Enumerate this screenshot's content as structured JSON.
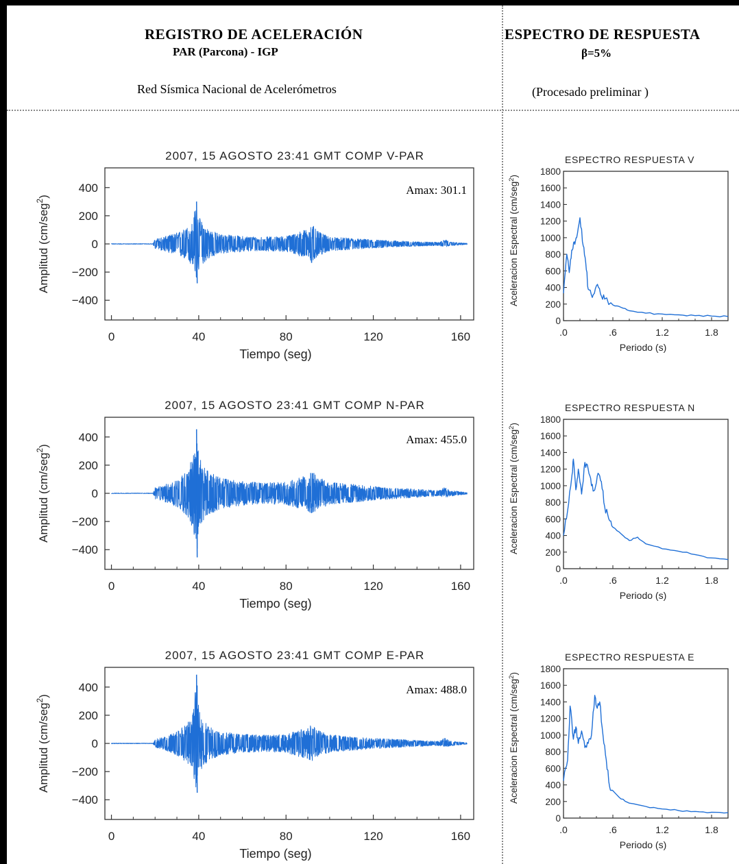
{
  "header": {
    "left_title": "REGISTRO DE ACELERACIÓN",
    "left_station": "PAR (Parcona) - IGP",
    "left_network": "Red Sísmica Nacional de Acelerómetros",
    "right_title": "ESPECTRO DE RESPUESTA",
    "right_damping": "β=5%",
    "right_note": "(Procesado preliminar )"
  },
  "colors": {
    "trace": "#1f6fd6",
    "axis": "#333333",
    "background": "#ffffff",
    "border": "#000000"
  },
  "chart_data": [
    {
      "type": "line",
      "title": "2007, 15 AGOSTO 23:41 GMT COMP V-PAR",
      "annotation": "Amax: 301.1",
      "amax": 301.1,
      "xlabel": "Tiempo (seg)",
      "ylabel": "Amplitud (cm/seg²)",
      "xlim": [
        -3,
        166
      ],
      "ylim": [
        -540,
        540
      ],
      "xticks": [
        0,
        40,
        80,
        120,
        160
      ],
      "yticks": [
        400,
        200,
        0,
        -200,
        -400
      ],
      "ytick_labels": [
        "400",
        "200",
        "0",
        "−200",
        "−400"
      ],
      "envelope": {
        "t": [
          0,
          19,
          20,
          25,
          30,
          34,
          37,
          38,
          39,
          40,
          42,
          45,
          50,
          60,
          70,
          80,
          86,
          90,
          92,
          94,
          97,
          100,
          110,
          120,
          130,
          140,
          150,
          153,
          155,
          160,
          163
        ],
        "pos": [
          2,
          2,
          35,
          55,
          80,
          110,
          150,
          230,
          301,
          200,
          140,
          100,
          70,
          55,
          50,
          55,
          85,
          110,
          140,
          95,
          70,
          50,
          40,
          30,
          22,
          16,
          12,
          30,
          14,
          8,
          5
        ],
        "neg": [
          2,
          2,
          35,
          55,
          80,
          110,
          160,
          200,
          280,
          190,
          140,
          100,
          70,
          55,
          50,
          55,
          85,
          110,
          150,
          95,
          70,
          50,
          40,
          30,
          22,
          16,
          12,
          22,
          14,
          8,
          5
        ]
      }
    },
    {
      "type": "line",
      "title": "ESPECTRO RESPUESTA V",
      "xlabel": "Periodo (s)",
      "ylabel": "Aceleracion Espectral (cm/seg²)",
      "xlim": [
        0,
        2.0
      ],
      "ylim": [
        0,
        1800
      ],
      "xticks": [
        0,
        0.6,
        1.2,
        1.8
      ],
      "xtick_labels": [
        ".0",
        ".6",
        "1.2",
        "1.8"
      ],
      "yticks": [
        0,
        200,
        400,
        600,
        800,
        1000,
        1200,
        1400,
        1600,
        1800
      ],
      "x": [
        0,
        0.04,
        0.07,
        0.1,
        0.13,
        0.16,
        0.2,
        0.24,
        0.27,
        0.3,
        0.35,
        0.4,
        0.45,
        0.5,
        0.6,
        0.7,
        0.8,
        1.0,
        1.2,
        1.4,
        1.6,
        1.8,
        2.0
      ],
      "y": [
        330,
        800,
        580,
        850,
        950,
        1000,
        1240,
        900,
        700,
        380,
        280,
        420,
        320,
        260,
        190,
        160,
        120,
        90,
        80,
        70,
        60,
        55,
        50
      ]
    },
    {
      "type": "line",
      "title": "2007, 15 AGOSTO 23:41 GMT COMP N-PAR",
      "annotation": "Amax: 455.0",
      "amax": 455.0,
      "xlabel": "Tiempo (seg)",
      "ylabel": "Amplitud (cm/seg²)",
      "xlim": [
        -3,
        166
      ],
      "ylim": [
        -540,
        540
      ],
      "xticks": [
        0,
        40,
        80,
        120,
        160
      ],
      "yticks": [
        400,
        200,
        0,
        -200,
        -400
      ],
      "ytick_labels": [
        "400",
        "200",
        "0",
        "−200",
        "−400"
      ],
      "envelope": {
        "t": [
          0,
          19,
          20,
          25,
          30,
          34,
          37,
          38,
          39,
          40,
          42,
          45,
          50,
          60,
          70,
          80,
          86,
          90,
          92,
          94,
          97,
          100,
          110,
          120,
          130,
          140,
          150,
          153,
          155,
          160,
          163
        ],
        "pos": [
          2,
          2,
          40,
          65,
          100,
          150,
          250,
          300,
          390,
          280,
          200,
          150,
          110,
          85,
          75,
          80,
          110,
          130,
          160,
          120,
          100,
          80,
          65,
          50,
          40,
          30,
          20,
          45,
          22,
          12,
          6
        ],
        "neg": [
          2,
          2,
          40,
          65,
          100,
          150,
          250,
          330,
          455,
          300,
          210,
          150,
          110,
          85,
          75,
          80,
          110,
          130,
          145,
          120,
          100,
          80,
          65,
          50,
          40,
          30,
          20,
          30,
          22,
          12,
          6
        ]
      }
    },
    {
      "type": "line",
      "title": "ESPECTRO RESPUESTA N",
      "xlabel": "Periodo (s)",
      "ylabel": "Aceleracion Espectral (cm/seg²)",
      "xlim": [
        0,
        2.0
      ],
      "ylim": [
        0,
        1800
      ],
      "xticks": [
        0,
        0.6,
        1.2,
        1.8
      ],
      "xtick_labels": [
        ".0",
        ".6",
        "1.2",
        "1.8"
      ],
      "yticks": [
        0,
        200,
        400,
        600,
        800,
        1000,
        1200,
        1400,
        1600,
        1800
      ],
      "x": [
        0,
        0.05,
        0.1,
        0.12,
        0.15,
        0.18,
        0.22,
        0.26,
        0.3,
        0.34,
        0.38,
        0.42,
        0.46,
        0.5,
        0.55,
        0.6,
        0.7,
        0.8,
        0.9,
        1.0,
        1.2,
        1.4,
        1.6,
        1.8,
        2.0
      ],
      "y": [
        400,
        700,
        1100,
        1320,
        950,
        1200,
        900,
        1280,
        1200,
        1000,
        950,
        1150,
        1050,
        750,
        600,
        500,
        420,
        340,
        380,
        300,
        240,
        210,
        170,
        130,
        110
      ]
    },
    {
      "type": "line",
      "title": "2007, 15 AGOSTO 23:41 GMT COMP E-PAR",
      "annotation": "Amax: 488.0",
      "amax": 488.0,
      "xlabel": "Tiempo (seg)",
      "ylabel": "Amplitud (cm/seg²)",
      "xlim": [
        -3,
        166
      ],
      "ylim": [
        -540,
        540
      ],
      "xticks": [
        0,
        40,
        80,
        120,
        160
      ],
      "yticks": [
        400,
        200,
        0,
        -200,
        -400
      ],
      "ytick_labels": [
        "400",
        "200",
        "0",
        "−200",
        "−400"
      ],
      "envelope": {
        "t": [
          0,
          19,
          20,
          25,
          30,
          34,
          37,
          38,
          39,
          40,
          42,
          45,
          50,
          60,
          70,
          80,
          86,
          90,
          92,
          94,
          97,
          100,
          110,
          120,
          130,
          140,
          150,
          153,
          155,
          160,
          163
        ],
        "pos": [
          2,
          2,
          30,
          50,
          85,
          130,
          190,
          300,
          488,
          250,
          170,
          120,
          85,
          65,
          60,
          65,
          95,
          115,
          140,
          100,
          85,
          65,
          50,
          38,
          30,
          22,
          16,
          40,
          18,
          10,
          5
        ],
        "neg": [
          2,
          2,
          30,
          50,
          85,
          130,
          190,
          260,
          350,
          230,
          160,
          120,
          85,
          65,
          60,
          65,
          95,
          115,
          130,
          100,
          85,
          65,
          50,
          38,
          30,
          22,
          16,
          25,
          18,
          10,
          5
        ]
      }
    },
    {
      "type": "line",
      "title": "ESPECTRO RESPUESTA E",
      "xlabel": "Periodo (s)",
      "ylabel": "Aceleracion Espectral (cm/seg²)",
      "xlim": [
        0,
        2.0
      ],
      "ylim": [
        0,
        1800
      ],
      "xticks": [
        0,
        0.6,
        1.2,
        1.8
      ],
      "xtick_labels": [
        ".0",
        ".6",
        "1.2",
        "1.8"
      ],
      "yticks": [
        0,
        200,
        400,
        600,
        800,
        1000,
        1200,
        1400,
        1600,
        1800
      ],
      "x": [
        0,
        0.05,
        0.08,
        0.12,
        0.15,
        0.18,
        0.22,
        0.26,
        0.3,
        0.34,
        0.38,
        0.4,
        0.44,
        0.48,
        0.52,
        0.56,
        0.6,
        0.7,
        0.8,
        1.0,
        1.2,
        1.4,
        1.6,
        1.8,
        2.0
      ],
      "y": [
        450,
        700,
        1350,
        950,
        1100,
        900,
        1050,
        850,
        900,
        1000,
        1480,
        1350,
        1400,
        1000,
        700,
        380,
        330,
        230,
        180,
        140,
        110,
        90,
        80,
        70,
        65
      ]
    }
  ]
}
